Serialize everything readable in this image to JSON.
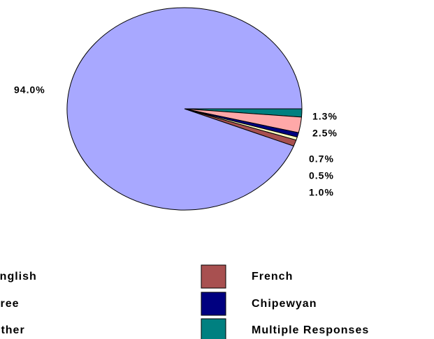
{
  "chart_data": {
    "type": "pie",
    "categories": [
      "Multiple Responses",
      "Cree",
      "Chipewyan",
      "Other",
      "French",
      "English"
    ],
    "values": [
      1.3,
      2.5,
      0.7,
      0.5,
      1.0,
      94.0
    ],
    "value_labels": [
      "1.3%",
      "2.5%",
      "0.7%",
      "0.5%",
      "1.0%",
      "94.0%"
    ],
    "colors": [
      "#008080",
      "#ffa8a8",
      "#000080",
      "#ffffc0",
      "#a85050",
      "#a8a8ff"
    ]
  }
}
